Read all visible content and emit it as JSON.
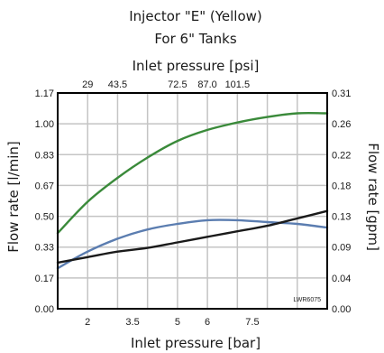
{
  "chart_data": {
    "type": "line",
    "title_line1": "Injector \"E\" (Yellow)",
    "title_line2": "For 6\" Tanks",
    "top_xlabel": "Inlet pressure [psi]",
    "xlabel": "Inlet pressure [bar]",
    "ylabel_left": "Flow rate [l/min]",
    "ylabel_right": "Flow rate [gpm]",
    "figure_code": "LWR6075",
    "xlim": [
      1,
      10
    ],
    "ylim": [
      0,
      1.17
    ],
    "grid": true,
    "x_ticks": [
      {
        "value": 2,
        "label": "2"
      },
      {
        "value": 3.5,
        "label": "3.5"
      },
      {
        "value": 5,
        "label": "5"
      },
      {
        "value": 6,
        "label": "6"
      },
      {
        "value": 7.5,
        "label": "7.5"
      }
    ],
    "top_x_ticks": [
      {
        "value": 2,
        "label": "29"
      },
      {
        "value": 3,
        "label": "43.5"
      },
      {
        "value": 5,
        "label": "72.5"
      },
      {
        "value": 6,
        "label": "87.0"
      },
      {
        "value": 7,
        "label": "101.5"
      }
    ],
    "left_y_ticks": [
      "0.00",
      "0.17",
      "0.33",
      "0.50",
      "0.67",
      "0.83",
      "1.00",
      "1.17"
    ],
    "right_y_ticks": [
      "0.00",
      "0.04",
      "0.09",
      "0.13",
      "0.18",
      "0.22",
      "0.26",
      "0.31"
    ],
    "series": [
      {
        "color": "#3a8a3a",
        "x": [
          1.0,
          2.0,
          3.0,
          4.0,
          5.0,
          6.0,
          7.0,
          8.0,
          9.0,
          10.0
        ],
        "y": [
          0.41,
          0.58,
          0.71,
          0.82,
          0.91,
          0.97,
          1.01,
          1.04,
          1.06,
          1.06
        ]
      },
      {
        "color": "#5b7db0",
        "x": [
          1.0,
          2.0,
          3.0,
          4.0,
          5.0,
          6.0,
          7.0,
          8.0,
          9.0,
          10.0
        ],
        "y": [
          0.22,
          0.31,
          0.38,
          0.43,
          0.46,
          0.48,
          0.48,
          0.47,
          0.46,
          0.44
        ]
      },
      {
        "color": "#1a1a1a",
        "x": [
          1.0,
          2.0,
          3.0,
          4.0,
          5.0,
          6.0,
          7.0,
          8.0,
          9.0,
          10.0
        ],
        "y": [
          0.25,
          0.28,
          0.31,
          0.33,
          0.36,
          0.39,
          0.42,
          0.45,
          0.49,
          0.53
        ]
      }
    ]
  }
}
